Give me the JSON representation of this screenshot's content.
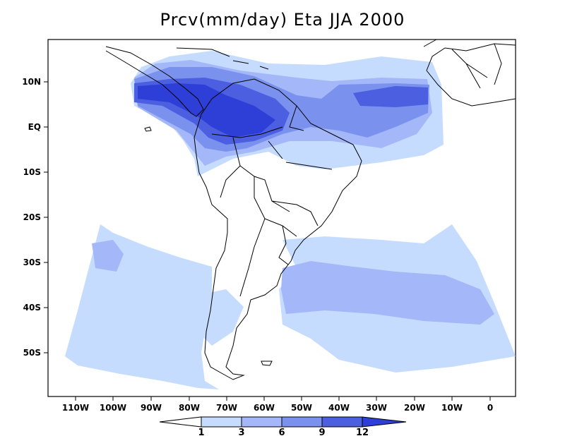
{
  "title": "Prcv(mm/day) Eta JJA 2000",
  "lat_labels": [
    "10N",
    "EQ",
    "10S",
    "20S",
    "30S",
    "40S",
    "50S"
  ],
  "lon_labels": [
    "110W",
    "100W",
    "90W",
    "80W",
    "70W",
    "60W",
    "50W",
    "40W",
    "30W",
    "20W",
    "10W",
    "0"
  ],
  "colorbar": {
    "levels": [
      "1",
      "3",
      "6",
      "9",
      "12"
    ],
    "colors": [
      "#ffffff",
      "#c6dcff",
      "#a3b7f9",
      "#7a92ee",
      "#4b5fe0",
      "#2d3fd6"
    ]
  }
}
